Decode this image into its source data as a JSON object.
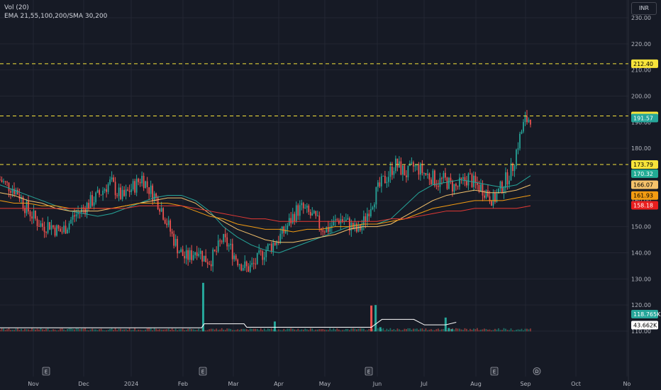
{
  "legend": {
    "volume": "Vol (20)",
    "indicators": "EMA 21,55,100,200/SMA 30,200"
  },
  "currency": "INR",
  "chart_data": {
    "type": "candlestick",
    "x_ticks": [
      "Nov",
      "Dec",
      "2024",
      "Feb",
      "Mar",
      "Apr",
      "May",
      "Jun",
      "Jul",
      "Aug",
      "Sep",
      "Oct",
      "No"
    ],
    "y_ticks": [
      230,
      220,
      210,
      200,
      190,
      180,
      170,
      160,
      150,
      140,
      130,
      120,
      110
    ],
    "ylim": [
      105,
      233
    ],
    "horizontal_levels": [
      212.4,
      192.39,
      173.79
    ],
    "price_tags": [
      {
        "label": "212.40",
        "value": 212.4,
        "color": "#f7e43a",
        "text_color": "#000000"
      },
      {
        "label": "192.39",
        "value": 192.39,
        "color": "#f7e43a",
        "text_color": "#000000"
      },
      {
        "label": "191.57",
        "value": 191.57,
        "color": "#26a69a",
        "text_color": "#ffffff"
      },
      {
        "label": "173.79",
        "value": 173.79,
        "color": "#f7e43a",
        "text_color": "#000000"
      },
      {
        "label": "170.32",
        "value": 170.32,
        "color": "#22ab94",
        "text_color": "#ffffff"
      },
      {
        "label": "166.07",
        "value": 166.07,
        "color": "#f5c26b",
        "text_color": "#000000"
      },
      {
        "label": "161.93",
        "value": 161.93,
        "color": "#f39c12",
        "text_color": "#000000"
      },
      {
        "label": "158.18",
        "value": 158.18,
        "color": "#e91e1e",
        "text_color": "#ffffff"
      },
      {
        "label": "118.765K",
        "value": 116.5,
        "color": "#26a69a",
        "text_color": "#ffffff"
      },
      {
        "label": "43.662K",
        "value": 112.3,
        "color": "#ffffff",
        "text_color": "#000000"
      }
    ],
    "price_path": [
      168,
      166,
      165,
      163,
      158,
      155,
      152,
      150,
      151,
      149,
      148,
      151,
      154,
      156,
      158,
      160,
      162,
      165,
      167,
      163,
      161,
      164,
      166,
      169,
      165,
      162,
      158,
      152,
      146,
      141,
      138,
      139,
      142,
      138,
      137,
      140,
      145,
      143,
      139,
      136,
      134,
      135,
      138,
      141,
      143,
      145,
      148,
      152,
      156,
      157,
      155,
      153,
      150,
      149,
      151,
      153,
      152,
      150,
      148,
      152,
      158,
      163,
      167,
      170,
      174,
      172,
      170,
      173,
      172,
      170,
      169,
      167,
      168,
      166,
      165,
      167,
      169,
      166,
      165,
      163,
      160,
      164,
      168,
      172,
      182,
      190,
      192
    ],
    "ma_lines": [
      {
        "name": "EMA 21",
        "color": "#26a69a",
        "values": [
          166,
          164,
          162,
          160,
          158,
          156,
          155,
          154,
          155,
          157,
          159,
          161,
          162,
          162,
          160,
          156,
          150,
          146,
          143,
          141,
          140,
          142,
          144,
          146,
          148,
          150,
          151,
          151,
          153,
          158,
          163,
          166,
          167,
          168,
          167,
          166,
          165,
          166,
          169.5
        ]
      },
      {
        "name": "EMA 55",
        "color": "#f5c26b",
        "values": [
          163,
          162,
          160,
          159,
          157,
          156,
          156,
          156,
          157,
          158,
          159,
          160,
          161,
          161,
          159,
          155,
          152,
          149,
          147,
          145,
          144,
          144,
          145,
          146,
          147,
          149,
          150,
          150,
          151,
          154,
          157,
          160,
          162,
          163,
          164,
          163,
          163,
          164,
          166
        ]
      },
      {
        "name": "EMA 100",
        "color": "#f39c12",
        "values": [
          160,
          159,
          159,
          158,
          158,
          157,
          157,
          157,
          157,
          158,
          159,
          159,
          159,
          158,
          156,
          154,
          153,
          151,
          150,
          149,
          149,
          148,
          149,
          149,
          150,
          150,
          151,
          151,
          152,
          153,
          155,
          157,
          158,
          159,
          160,
          160,
          160,
          161,
          162
        ]
      },
      {
        "name": "EMA 200",
        "color": "#e53935",
        "values": [
          157,
          157,
          157,
          157,
          157,
          157,
          157,
          157,
          157,
          157,
          158,
          158,
          158,
          158,
          157,
          156,
          155,
          154,
          153,
          153,
          152,
          152,
          152,
          152,
          152,
          152,
          152,
          152,
          153,
          153,
          154,
          155,
          156,
          156,
          157,
          157,
          157,
          157,
          158
        ]
      }
    ],
    "volume_line": [
      {
        "x": 0,
        "v": 111.3
      },
      {
        "x": 0.38,
        "v": 111.3
      },
      {
        "x": 0.385,
        "v": 112.8
      },
      {
        "x": 0.46,
        "v": 112.8
      },
      {
        "x": 0.465,
        "v": 111.5
      },
      {
        "x": 0.7,
        "v": 111.5
      },
      {
        "x": 0.72,
        "v": 114.5
      },
      {
        "x": 0.78,
        "v": 114.5
      },
      {
        "x": 0.8,
        "v": 112.4
      },
      {
        "x": 0.84,
        "v": 112.4
      },
      {
        "x": 0.86,
        "v": 113.4
      }
    ],
    "volume_spikes": [
      {
        "x": 0.383,
        "v": 128.5,
        "up": true
      },
      {
        "x": 0.518,
        "v": 113.7,
        "up": true
      },
      {
        "x": 0.7,
        "v": 119.8,
        "up": false
      },
      {
        "x": 0.708,
        "v": 120.0,
        "up": true
      },
      {
        "x": 0.717,
        "v": 111.5,
        "up": true
      },
      {
        "x": 0.84,
        "v": 115.2,
        "up": true
      },
      {
        "x": 0.846,
        "v": 111.2,
        "up": true
      },
      {
        "x": 0.852,
        "v": 110.8,
        "up": true
      }
    ],
    "earnings_markers": [
      "E",
      "E",
      "E",
      "E"
    ],
    "dividend_marker": "D",
    "colors": {
      "up": "#26a69a",
      "down": "#ef5350",
      "grid": "#232632",
      "text": "#b2b5be",
      "level": "#f7e43a"
    }
  }
}
